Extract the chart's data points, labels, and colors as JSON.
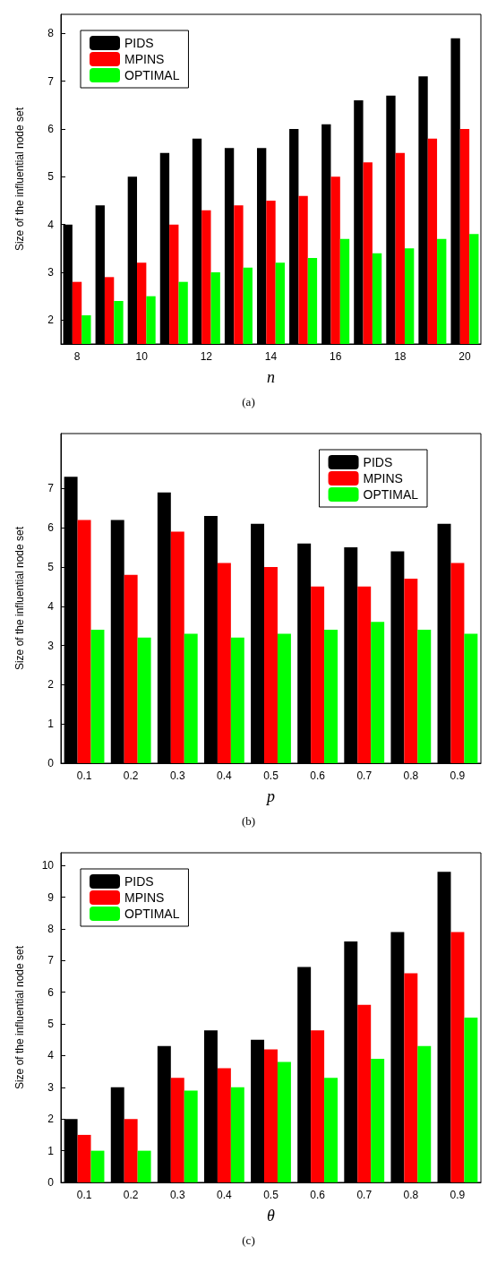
{
  "chart_data": [
    {
      "type": "bar",
      "xlabel": "n",
      "ylabel": "Size of the influential node set",
      "annotations": [
        "(a)"
      ],
      "categories": [
        "8",
        null,
        "10",
        null,
        "12",
        null,
        "14",
        null,
        "16",
        null,
        "18",
        null,
        "20"
      ],
      "ylim": [
        1.5,
        8.4
      ],
      "yticks": [
        2,
        3,
        4,
        5,
        6,
        7,
        8
      ],
      "legend": "top left",
      "grid": false,
      "series": [
        {
          "name": "PIDS",
          "color": "#000000",
          "values": [
            4.0,
            4.4,
            5.0,
            5.5,
            5.8,
            5.6,
            5.6,
            6.0,
            6.1,
            6.6,
            6.7,
            7.1,
            7.9
          ]
        },
        {
          "name": "MPINS",
          "color": "#ff0000",
          "values": [
            2.8,
            2.9,
            3.2,
            4.0,
            4.3,
            4.4,
            4.5,
            4.6,
            5.0,
            5.3,
            5.5,
            5.8,
            6.0
          ]
        },
        {
          "name": "OPTIMAL",
          "color": "#00ff00",
          "values": [
            2.1,
            2.4,
            2.5,
            2.8,
            3.0,
            3.1,
            3.2,
            3.3,
            3.7,
            3.4,
            3.5,
            3.7,
            3.8
          ]
        }
      ]
    },
    {
      "type": "bar",
      "xlabel": "p",
      "ylabel": "Size of the influential node set",
      "annotations": [
        "(b)"
      ],
      "categories": [
        "0.1",
        "0.2",
        "0.3",
        "0.4",
        "0.5",
        "0.6",
        "0.7",
        "0.8",
        "0.9"
      ],
      "ylim": [
        0,
        8.4
      ],
      "yticks": [
        0,
        1,
        2,
        3,
        4,
        5,
        6,
        7
      ],
      "legend": "top right",
      "grid": false,
      "series": [
        {
          "name": "PIDS",
          "color": "#000000",
          "values": [
            7.3,
            6.2,
            6.9,
            6.3,
            6.1,
            5.6,
            5.5,
            5.4,
            6.1
          ]
        },
        {
          "name": "MPINS",
          "color": "#ff0000",
          "values": [
            6.2,
            4.8,
            5.9,
            5.1,
            5.0,
            4.5,
            4.5,
            4.7,
            5.1
          ]
        },
        {
          "name": "OPTIMAL",
          "color": "#00ff00",
          "values": [
            3.4,
            3.2,
            3.3,
            3.2,
            3.3,
            3.4,
            3.6,
            3.4,
            3.3
          ]
        }
      ]
    },
    {
      "type": "bar",
      "xlabel": "θ",
      "ylabel": "Size of the influential node set",
      "annotations": [
        "(c)"
      ],
      "categories": [
        "0.1",
        "0.2",
        "0.3",
        "0.4",
        "0.5",
        "0.6",
        "0.7",
        "0.8",
        "0.9"
      ],
      "ylim": [
        0,
        10.4
      ],
      "yticks": [
        0,
        1,
        2,
        3,
        4,
        5,
        6,
        7,
        8,
        9,
        10
      ],
      "legend": "top left",
      "grid": false,
      "series": [
        {
          "name": "PIDS",
          "color": "#000000",
          "values": [
            2.0,
            3.0,
            4.3,
            4.8,
            4.5,
            6.8,
            7.6,
            7.9,
            9.8
          ]
        },
        {
          "name": "MPINS",
          "color": "#ff0000",
          "values": [
            1.5,
            2.0,
            3.3,
            3.6,
            4.2,
            4.8,
            5.6,
            6.6,
            7.9
          ]
        },
        {
          "name": "OPTIMAL",
          "color": "#00ff00",
          "values": [
            1.0,
            1.0,
            2.9,
            3.0,
            3.8,
            3.3,
            3.9,
            4.3,
            5.2
          ]
        }
      ]
    }
  ]
}
